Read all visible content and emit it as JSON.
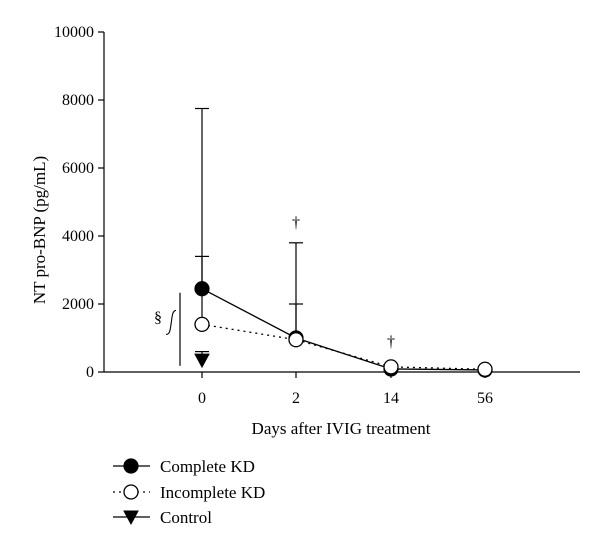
{
  "chart_data": {
    "type": "line",
    "xlabel": "Days after IVIG treatment",
    "ylabel": "NT pro-BNP (pg/mL)",
    "categories": [
      "0",
      "2",
      "14",
      "56"
    ],
    "ylim": [
      0,
      10000
    ],
    "yticks": [
      0,
      2000,
      4000,
      6000,
      8000,
      10000
    ],
    "series": [
      {
        "name": "Complete KD",
        "marker": "filled-circle",
        "line": "solid",
        "values": [
          2450,
          1000,
          90,
          60
        ],
        "err_upper": [
          7750,
          3800,
          null,
          null
        ],
        "err_lower": [
          null,
          null,
          null,
          null
        ]
      },
      {
        "name": "Incomplete KD",
        "marker": "open-circle",
        "line": "dotted",
        "values": [
          1400,
          950,
          150,
          80
        ],
        "err_upper": [
          3400,
          2000,
          null,
          null
        ],
        "err_lower": [
          null,
          null,
          null,
          null
        ]
      },
      {
        "name": "Control",
        "marker": "filled-triangle-down",
        "line": "none",
        "values": [
          350,
          null,
          null,
          null
        ],
        "err_upper": [
          600,
          null,
          null,
          null
        ],
        "err_lower": [
          null,
          null,
          null,
          null
        ]
      }
    ],
    "annotations": [
      {
        "text": "†",
        "category": "2",
        "y": 4250
      },
      {
        "text": "†",
        "category": "14",
        "y": 750
      },
      {
        "text": "§",
        "category": "0",
        "y": 1400,
        "bracket": [
          300,
          2450
        ]
      }
    ],
    "legend_position": "bottom-left"
  }
}
